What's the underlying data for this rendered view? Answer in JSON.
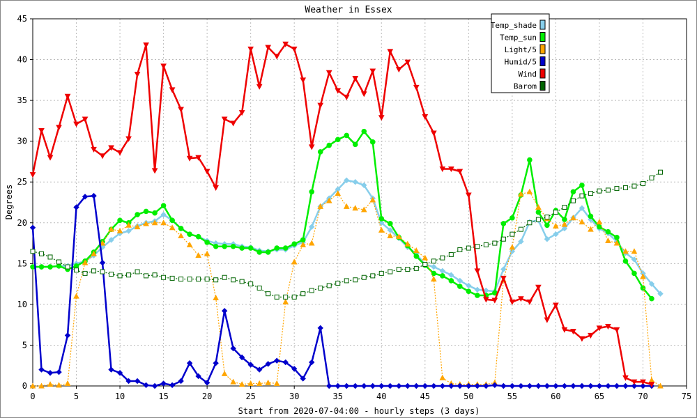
{
  "chart_data": {
    "type": "line",
    "title": "Weather in Essex",
    "xlabel": "Start from 2020-07-04:00 - hourly steps (3 days)",
    "ylabel": "Degrees",
    "xlim": [
      0,
      75
    ],
    "ylim": [
      0,
      45
    ],
    "xticks": [
      0,
      5,
      10,
      15,
      20,
      25,
      30,
      35,
      40,
      45,
      50,
      55,
      60,
      65,
      70,
      75
    ],
    "yticks": [
      0,
      5,
      10,
      15,
      20,
      25,
      30,
      35,
      40,
      45
    ],
    "grid": true,
    "legend_position": "top-right",
    "series": [
      {
        "name": "Temp_shade",
        "color": "#87ceeb",
        "marker": "diamond",
        "values": [
          14.6,
          14.6,
          14.6,
          14.7,
          14.7,
          15.0,
          15.3,
          16.0,
          17.0,
          17.9,
          18.7,
          19.0,
          19.6,
          20.0,
          20.2,
          21.0,
          20.3,
          19.3,
          18.6,
          18.3,
          17.8,
          17.5,
          17.4,
          17.4,
          17.1,
          17.0,
          16.6,
          16.5,
          16.7,
          16.7,
          17.2,
          17.6,
          19.5,
          22.0,
          23.0,
          24.1,
          25.2,
          25.0,
          24.6,
          23.0,
          20.0,
          19.1,
          18.1,
          17.0,
          16.2,
          14.9,
          14.6,
          14.1,
          13.6,
          12.9,
          12.3,
          11.8,
          11.7,
          11.6,
          14.3,
          16.5,
          17.7,
          20.1,
          20.3,
          18.0,
          18.6,
          19.3,
          20.6,
          21.8,
          20.4,
          19.3,
          18.7,
          17.7,
          16.3,
          15.5,
          13.8,
          12.5,
          11.3
        ]
      },
      {
        "name": "Temp_sun",
        "color": "#00ee00",
        "marker": "circle",
        "values": [
          14.6,
          14.6,
          14.6,
          14.7,
          14.3,
          14.7,
          15.3,
          16.4,
          17.7,
          19.2,
          20.3,
          20.0,
          21.0,
          21.4,
          21.2,
          22.1,
          20.3,
          19.3,
          18.6,
          18.3,
          17.6,
          17.1,
          17.1,
          17.1,
          16.9,
          16.9,
          16.4,
          16.4,
          16.9,
          16.9,
          17.4,
          17.9,
          23.8,
          28.7,
          29.5,
          30.2,
          30.7,
          29.6,
          31.2,
          29.9,
          20.5,
          19.9,
          18.2,
          17.2,
          15.9,
          14.8,
          13.8,
          13.5,
          12.9,
          12.2,
          11.6,
          11.1,
          11.1,
          11.4,
          19.9,
          20.6,
          23.4,
          27.7,
          21.3,
          19.7,
          21.5,
          20.4,
          23.8,
          24.6,
          20.8,
          19.5,
          18.9,
          18.2,
          15.3,
          13.8,
          12.0,
          10.7,
          null
        ]
      },
      {
        "name": "Light/5",
        "color": "#ffa500",
        "marker": "triangle",
        "values": [
          0.0,
          0.0,
          0.2,
          0.1,
          0.3,
          11.0,
          15.1,
          16.2,
          17.5,
          19.2,
          19.0,
          19.7,
          19.5,
          19.9,
          20.0,
          20.0,
          19.4,
          18.4,
          17.3,
          16.0,
          16.2,
          10.8,
          1.5,
          0.5,
          0.2,
          0.3,
          0.3,
          0.4,
          0.3,
          10.3,
          15.2,
          17.3,
          17.5,
          22.0,
          22.7,
          23.6,
          22.0,
          21.8,
          21.6,
          22.8,
          19.1,
          18.4,
          18.3,
          17.4,
          16.6,
          15.7,
          13.1,
          1.0,
          0.3,
          0.2,
          0.2,
          0.2,
          0.2,
          0.4,
          13.0,
          17.0,
          23.5,
          23.8,
          21.9,
          20.5,
          19.6,
          19.8,
          20.6,
          20.1,
          19.2,
          20.1,
          17.8,
          17.5,
          16.5,
          16.5,
          13.4,
          0.7,
          0.0
        ]
      },
      {
        "name": "Humid/5",
        "color": "#0000cc",
        "marker": "diamond",
        "values": [
          19.4,
          2.0,
          1.6,
          1.7,
          6.2,
          21.9,
          23.2,
          23.3,
          15.1,
          2.0,
          1.6,
          0.6,
          0.6,
          0.1,
          0.0,
          0.3,
          0.1,
          0.6,
          2.8,
          1.2,
          0.4,
          2.8,
          9.2,
          4.6,
          3.5,
          2.6,
          2.0,
          2.7,
          3.1,
          2.9,
          2.1,
          0.9,
          2.9,
          7.1,
          0.0,
          0.0,
          0.0,
          0.0,
          0.0,
          0.0,
          0.0,
          0.0,
          0.0,
          0.0,
          0.0,
          0.0,
          0.0,
          0.0,
          0.0,
          0.0,
          0.0,
          0.0,
          0.0,
          0.1,
          0.0,
          0.0,
          0.0,
          0.0,
          0.0,
          0.0,
          0.0,
          0.0,
          0.0,
          0.0,
          0.0,
          0.0,
          0.0,
          0.0,
          0.0,
          0.0,
          0.0,
          0.0,
          null
        ]
      },
      {
        "name": "Wind",
        "color": "#ee0000",
        "marker": "triangle-down",
        "values": [
          25.9,
          31.3,
          28.0,
          31.7,
          35.5,
          32.1,
          32.7,
          29.0,
          28.2,
          29.2,
          28.6,
          30.3,
          38.2,
          41.8,
          26.4,
          39.2,
          36.3,
          33.9,
          27.9,
          28.0,
          26.3,
          24.3,
          32.7,
          32.2,
          33.5,
          41.3,
          36.7,
          41.5,
          40.4,
          41.9,
          41.3,
          37.5,
          29.3,
          34.4,
          38.4,
          36.2,
          35.4,
          37.7,
          35.8,
          38.6,
          32.9,
          41.0,
          38.8,
          39.7,
          36.6,
          33.0,
          31.0,
          26.6,
          26.6,
          26.3,
          23.4,
          14.1,
          10.6,
          10.5,
          13.2,
          10.3,
          10.7,
          10.3,
          12.1,
          8.1,
          9.9,
          6.9,
          6.7,
          5.8,
          6.2,
          7.1,
          7.3,
          6.9,
          1.0,
          0.5,
          0.5,
          0.2,
          null
        ]
      },
      {
        "name": "Barom",
        "color": "#006400",
        "marker": "square",
        "values": [
          16.5,
          16.2,
          15.8,
          15.2,
          14.6,
          14.2,
          13.8,
          14.1,
          14.0,
          13.7,
          13.5,
          13.6,
          14.0,
          13.5,
          13.6,
          13.3,
          13.2,
          13.1,
          13.1,
          13.1,
          13.1,
          13.0,
          13.3,
          13.0,
          12.8,
          12.5,
          12.0,
          11.3,
          10.9,
          10.9,
          10.9,
          11.3,
          11.7,
          12.0,
          12.3,
          12.6,
          12.9,
          13.0,
          13.3,
          13.5,
          13.8,
          14.0,
          14.3,
          14.3,
          14.4,
          14.9,
          15.3,
          15.7,
          16.1,
          16.7,
          16.9,
          17.1,
          17.3,
          17.5,
          18.0,
          18.6,
          19.2,
          20.0,
          20.4,
          20.7,
          21.3,
          21.9,
          22.7,
          23.3,
          23.6,
          23.9,
          24.0,
          24.2,
          24.3,
          24.5,
          24.8,
          25.5,
          26.2
        ]
      }
    ]
  }
}
